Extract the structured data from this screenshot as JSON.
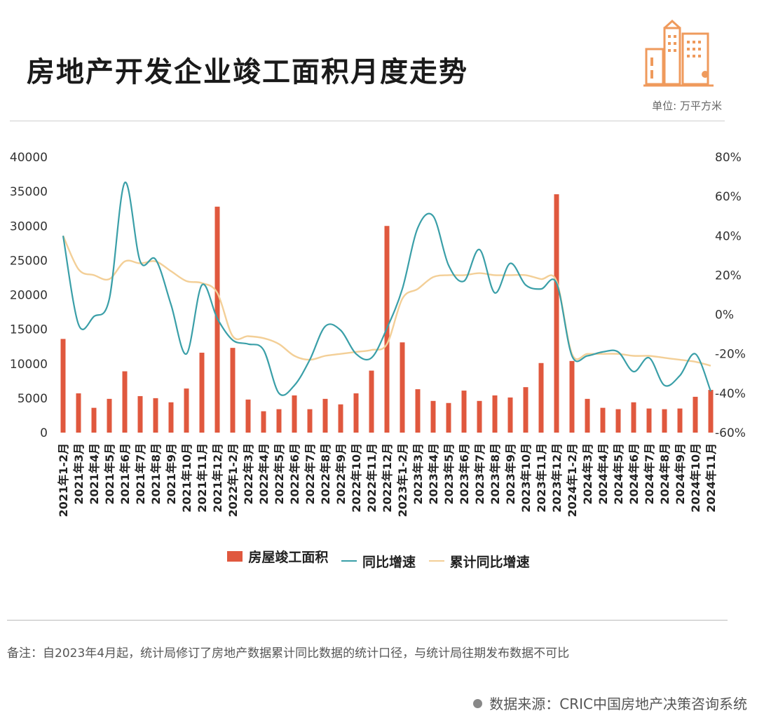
{
  "header": {
    "title": "房地产开发企业竣工面积月度走势",
    "unit": "单位: 万平方米"
  },
  "colors": {
    "bar": "#e0583e",
    "yoy_line": "#3a9fa8",
    "cum_line": "#f3cf97",
    "logo": "#ef9a5c"
  },
  "legend": {
    "bar_label": "房屋竣工面积",
    "yoy_label": "同比增速",
    "cum_label": "累计同比增速"
  },
  "footer": {
    "note": "备注：自2023年4月起，统计局修订了房地产数据累计同比数据的统计口径，与统计局往期发布数据不可比",
    "source": "数据来源：CRIC中国房地产决策咨询系统"
  },
  "chart_data": {
    "type": "bar",
    "categories": [
      "2021年1-2月",
      "2021年3月",
      "2021年4月",
      "2021年5月",
      "2021年6月",
      "2021年7月",
      "2021年8月",
      "2021年9月",
      "2021年10月",
      "2021年11月",
      "2021年12月",
      "2022年1-2月",
      "2022年3月",
      "2022年4月",
      "2022年5月",
      "2022年6月",
      "2022年7月",
      "2022年8月",
      "2022年9月",
      "2022年10月",
      "2022年11月",
      "2022年12月",
      "2023年1-2月",
      "2023年3月",
      "2023年4月",
      "2023年5月",
      "2023年6月",
      "2023年7月",
      "2023年8月",
      "2023年9月",
      "2023年10月",
      "2023年11月",
      "2023年12月",
      "2024年1-2月",
      "2024年3月",
      "2024年4月",
      "2024年5月",
      "2024年6月",
      "2024年7月",
      "2024年8月",
      "2024年9月",
      "2024年10月",
      "2024年11月"
    ],
    "series": [
      {
        "name": "房屋竣工面积",
        "axis": "left",
        "render": "bar",
        "values": [
          13600,
          5700,
          3600,
          4900,
          8900,
          5300,
          5000,
          4400,
          6400,
          11600,
          32800,
          12300,
          4800,
          3100,
          3400,
          5400,
          3400,
          4900,
          4100,
          5700,
          9000,
          30000,
          13100,
          6300,
          4600,
          4300,
          6100,
          4600,
          5400,
          5100,
          6600,
          10100,
          34600,
          10400,
          4900,
          3600,
          3400,
          4400,
          3500,
          3400,
          3500,
          5200,
          6200
        ]
      },
      {
        "name": "同比增速",
        "axis": "right",
        "render": "line",
        "values": [
          40,
          -5,
          -1,
          8,
          67,
          27,
          28,
          5,
          -20,
          15,
          -2,
          -13,
          -15,
          -18,
          -40,
          -36,
          -23,
          -6,
          -8,
          -20,
          -22,
          -7,
          13,
          44,
          50,
          25,
          17,
          33,
          11,
          26,
          15,
          13,
          16,
          -21,
          -21,
          -19,
          -19,
          -29,
          -22,
          -36,
          -31,
          -20,
          -39
        ]
      },
      {
        "name": "累计同比增速",
        "axis": "right",
        "render": "line",
        "values": [
          40,
          23,
          20,
          18,
          27,
          26,
          27,
          22,
          17,
          16,
          11,
          -11,
          -11,
          -12,
          -15,
          -21,
          -23,
          -21,
          -20,
          -19,
          -18,
          -15,
          8,
          13,
          19,
          20,
          20,
          21,
          20,
          20,
          20,
          18,
          17,
          -20,
          -20,
          -20,
          -20,
          -21,
          -21,
          -22,
          -23,
          -24,
          -26
        ]
      }
    ],
    "y_left": {
      "min": 0,
      "max": 40000,
      "ticks": [
        0,
        5000,
        10000,
        15000,
        20000,
        25000,
        30000,
        35000,
        40000
      ]
    },
    "y_right": {
      "min": -60,
      "max": 80,
      "ticks": [
        -60,
        -40,
        -20,
        0,
        20,
        40,
        60,
        80
      ],
      "tick_suffix": "%"
    },
    "legend_position": "bottom",
    "grid": false
  }
}
